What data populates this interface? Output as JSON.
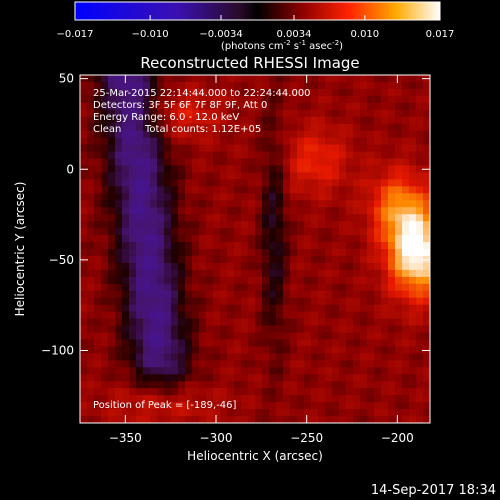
{
  "chart_data": {
    "type": "heatmap",
    "title": "Reconstructed RHESSI Image",
    "xlabel": "Heliocentric X (arcsec)",
    "ylabel": "Heliocentric Y (arcsec)",
    "xlim": [
      -375,
      -182
    ],
    "ylim": [
      -140,
      52
    ],
    "x_ticks": [
      -350,
      -300,
      -250,
      -200
    ],
    "y_ticks": [
      50,
      0,
      -50,
      -100
    ],
    "colorbar": {
      "range": [
        -0.017,
        0.017
      ],
      "ticks": [
        "-0.017",
        "-0.010",
        "-0.0034",
        "0.0034",
        "0.010",
        "0.017"
      ],
      "tick_values": [
        -0.017,
        -0.01,
        -0.0034,
        0.0034,
        0.01,
        0.017
      ],
      "label": "(photons cm",
      "label_exp1": "-2",
      "label_mid": " s",
      "label_exp2": "-1",
      "label_end": " asec",
      "label_exp3": "-2",
      "label_close": ")"
    },
    "annotations": {
      "time_range": "25-Mar-2015 22:14:44.000 to 22:24:44.000",
      "detectors": "Detectors: 3F 5F 6F 7F 8F 9F, Att 0",
      "energy": "Energy Range: 6.0 - 12.0 keV",
      "clean_label": "Clean",
      "total_counts": "Total counts: 1.12E+05",
      "peak": "Position of Peak = [-189,-46]"
    },
    "peak": {
      "x": -189,
      "y": -46,
      "value": 0.017
    }
  },
  "footer": {
    "timestamp": "14-Sep-2017 18:34"
  }
}
